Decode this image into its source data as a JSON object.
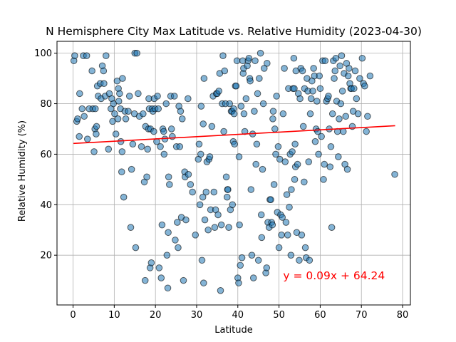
{
  "chart_data": {
    "type": "scatter",
    "title": "N Hemisphere City Max Latitude vs. Relative Humidity (2023-04-30)",
    "xlabel": "Latitude",
    "ylabel": "Relative Humidity (%)",
    "xlim": [
      -3.9,
      81.9
    ],
    "ylim": [
      0.3,
      104.7
    ],
    "xticks": [
      0,
      10,
      20,
      30,
      40,
      50,
      60,
      70,
      80
    ],
    "yticks": [
      20,
      40,
      60,
      80,
      100
    ],
    "grid": true,
    "legend": "none",
    "point_color": "#1f77b4",
    "point_alpha": 0.55,
    "line_color": "#ff0000",
    "regression": {
      "slope": 0.09,
      "intercept": 64.24,
      "x_range": [
        0.1,
        78.2
      ]
    },
    "annotation": {
      "text": "y = 0.09x + 64.24",
      "x": 51,
      "y": 10.5,
      "color": "#ff0000"
    },
    "points": [
      [
        0.2,
        97
      ],
      [
        0.4,
        99
      ],
      [
        0.9,
        73
      ],
      [
        1.1,
        74
      ],
      [
        1.5,
        67
      ],
      [
        1.6,
        84
      ],
      [
        2.2,
        78
      ],
      [
        2.5,
        99
      ],
      [
        2.7,
        75
      ],
      [
        3.3,
        99
      ],
      [
        3.5,
        66
      ],
      [
        3.9,
        78
      ],
      [
        4.6,
        93
      ],
      [
        4.8,
        78
      ],
      [
        5.1,
        61
      ],
      [
        5.3,
        70
      ],
      [
        5.4,
        78
      ],
      [
        5.6,
        68
      ],
      [
        5.7,
        71
      ],
      [
        5.9,
        87
      ],
      [
        6.1,
        83
      ],
      [
        6.6,
        88
      ],
      [
        6.8,
        82
      ],
      [
        7.1,
        95
      ],
      [
        7.4,
        93
      ],
      [
        7.5,
        88
      ],
      [
        7.8,
        83
      ],
      [
        8.0,
        99
      ],
      [
        8.6,
        62
      ],
      [
        8.8,
        84
      ],
      [
        9.2,
        78
      ],
      [
        9.4,
        82
      ],
      [
        9.6,
        73
      ],
      [
        9.8,
        80
      ],
      [
        10.1,
        76
      ],
      [
        10.4,
        68
      ],
      [
        10.7,
        89
      ],
      [
        10.9,
        74
      ],
      [
        11.0,
        86
      ],
      [
        11.1,
        81
      ],
      [
        11.3,
        84
      ],
      [
        11.5,
        78
      ],
      [
        11.6,
        65
      ],
      [
        11.8,
        53
      ],
      [
        11.9,
        61
      ],
      [
        12.0,
        90
      ],
      [
        12.3,
        43
      ],
      [
        12.6,
        77
      ],
      [
        12.8,
        74
      ],
      [
        13.4,
        77
      ],
      [
        13.7,
        83
      ],
      [
        14.0,
        31
      ],
      [
        14.2,
        54
      ],
      [
        14.5,
        64
      ],
      [
        14.9,
        76
      ],
      [
        15.0,
        100
      ],
      [
        15.2,
        23
      ],
      [
        15.5,
        100
      ],
      [
        15.8,
        84
      ],
      [
        16.1,
        75
      ],
      [
        16.6,
        63
      ],
      [
        17.0,
        76
      ],
      [
        17.3,
        49
      ],
      [
        17.5,
        10
      ],
      [
        17.6,
        71
      ],
      [
        17.9,
        51
      ],
      [
        18.1,
        62
      ],
      [
        18.3,
        70
      ],
      [
        18.4,
        82
      ],
      [
        18.5,
        78
      ],
      [
        18.7,
        15
      ],
      [
        18.8,
        70
      ],
      [
        19.0,
        17
      ],
      [
        19.2,
        78
      ],
      [
        19.4,
        77
      ],
      [
        19.6,
        69
      ],
      [
        19.7,
        82
      ],
      [
        19.9,
        78
      ],
      [
        20.3,
        65
      ],
      [
        20.5,
        83
      ],
      [
        20.7,
        78
      ],
      [
        20.9,
        15
      ],
      [
        21.2,
        63
      ],
      [
        21.4,
        11
      ],
      [
        21.6,
        32
      ],
      [
        21.8,
        70
      ],
      [
        22.0,
        69
      ],
      [
        22.1,
        60
      ],
      [
        22.3,
        66
      ],
      [
        22.6,
        80
      ],
      [
        22.8,
        20
      ],
      [
        23.0,
        7
      ],
      [
        23.1,
        29
      ],
      [
        23.2,
        51
      ],
      [
        23.4,
        48
      ],
      [
        23.7,
        83
      ],
      [
        23.9,
        70
      ],
      [
        24.1,
        67
      ],
      [
        24.6,
        83
      ],
      [
        24.8,
        26
      ],
      [
        25.1,
        63
      ],
      [
        25.3,
        33
      ],
      [
        25.5,
        23
      ],
      [
        25.7,
        79
      ],
      [
        25.9,
        63
      ],
      [
        26.1,
        77
      ],
      [
        26.3,
        35
      ],
      [
        26.5,
        74
      ],
      [
        26.8,
        10
      ],
      [
        27.1,
        53
      ],
      [
        27.2,
        51
      ],
      [
        27.4,
        34
      ],
      [
        27.9,
        82
      ],
      [
        28.0,
        52
      ],
      [
        28.5,
        48
      ],
      [
        29.0,
        45
      ],
      [
        29.7,
        28
      ],
      [
        30.4,
        58
      ],
      [
        30.6,
        64
      ],
      [
        30.8,
        40
      ],
      [
        31.0,
        60
      ],
      [
        31.1,
        79
      ],
      [
        31.3,
        18
      ],
      [
        31.5,
        43
      ],
      [
        31.6,
        72
      ],
      [
        31.7,
        9
      ],
      [
        31.8,
        90
      ],
      [
        32.0,
        34
      ],
      [
        32.3,
        45
      ],
      [
        32.5,
        57
      ],
      [
        32.8,
        30
      ],
      [
        33.0,
        58
      ],
      [
        33.2,
        59
      ],
      [
        33.4,
        38
      ],
      [
        33.7,
        71
      ],
      [
        34.0,
        83
      ],
      [
        34.2,
        45
      ],
      [
        34.4,
        31
      ],
      [
        34.6,
        38
      ],
      [
        34.8,
        84
      ],
      [
        35.0,
        84
      ],
      [
        35.2,
        36
      ],
      [
        35.4,
        85
      ],
      [
        35.6,
        92
      ],
      [
        35.8,
        6
      ],
      [
        36.0,
        32
      ],
      [
        36.2,
        80
      ],
      [
        36.4,
        99
      ],
      [
        36.6,
        69
      ],
      [
        36.8,
        93
      ],
      [
        37.0,
        80
      ],
      [
        37.2,
        51
      ],
      [
        37.4,
        43
      ],
      [
        37.5,
        46
      ],
      [
        37.6,
        46
      ],
      [
        37.8,
        31
      ],
      [
        38.0,
        80
      ],
      [
        38.2,
        38
      ],
      [
        38.4,
        77
      ],
      [
        38.6,
        77
      ],
      [
        38.7,
        40
      ],
      [
        38.9,
        65
      ],
      [
        39.0,
        78
      ],
      [
        39.1,
        76
      ],
      [
        39.2,
        64
      ],
      [
        39.4,
        87
      ],
      [
        39.6,
        87
      ],
      [
        39.8,
        97
      ],
      [
        40.0,
        11
      ],
      [
        40.2,
        9
      ],
      [
        40.3,
        59
      ],
      [
        40.4,
        32
      ],
      [
        40.6,
        16
      ],
      [
        40.8,
        79
      ],
      [
        41.0,
        19
      ],
      [
        41.2,
        97
      ],
      [
        41.3,
        92
      ],
      [
        41.4,
        94
      ],
      [
        41.5,
        76
      ],
      [
        41.7,
        69
      ],
      [
        42.0,
        82
      ],
      [
        42.3,
        95
      ],
      [
        42.5,
        97
      ],
      [
        42.7,
        98
      ],
      [
        42.9,
        90
      ],
      [
        43.0,
        89
      ],
      [
        43.2,
        46
      ],
      [
        43.4,
        20
      ],
      [
        43.6,
        68
      ],
      [
        43.8,
        11
      ],
      [
        44.0,
        77
      ],
      [
        44.2,
        97
      ],
      [
        44.4,
        56
      ],
      [
        44.6,
        64
      ],
      [
        44.8,
        84
      ],
      [
        45.0,
        18
      ],
      [
        45.2,
        90
      ],
      [
        45.5,
        100
      ],
      [
        45.7,
        36
      ],
      [
        45.8,
        27
      ],
      [
        46.0,
        54
      ],
      [
        46.2,
        80
      ],
      [
        46.4,
        94
      ],
      [
        46.8,
        13
      ],
      [
        47.0,
        15
      ],
      [
        47.1,
        96
      ],
      [
        47.3,
        33
      ],
      [
        47.6,
        31
      ],
      [
        47.8,
        42
      ],
      [
        48.0,
        42
      ],
      [
        48.2,
        33
      ],
      [
        48.4,
        32
      ],
      [
        48.5,
        74
      ],
      [
        48.6,
        77
      ],
      [
        48.8,
        48
      ],
      [
        49.0,
        70
      ],
      [
        49.2,
        60
      ],
      [
        49.4,
        83
      ],
      [
        49.6,
        37
      ],
      [
        49.8,
        63
      ],
      [
        50.0,
        23
      ],
      [
        50.2,
        58
      ],
      [
        50.4,
        36
      ],
      [
        50.6,
        28
      ],
      [
        50.8,
        35
      ],
      [
        51.0,
        76
      ],
      [
        51.3,
        94
      ],
      [
        51.5,
        57
      ],
      [
        51.7,
        33
      ],
      [
        51.9,
        44
      ],
      [
        52.1,
        28
      ],
      [
        52.3,
        86
      ],
      [
        52.5,
        39
      ],
      [
        52.7,
        60
      ],
      [
        52.9,
        20
      ],
      [
        53.0,
        46
      ],
      [
        53.2,
        61
      ],
      [
        53.4,
        86
      ],
      [
        53.6,
        98
      ],
      [
        53.7,
        86
      ],
      [
        53.8,
        50
      ],
      [
        53.9,
        64
      ],
      [
        54.0,
        55
      ],
      [
        54.1,
        93
      ],
      [
        54.3,
        29
      ],
      [
        54.5,
        56
      ],
      [
        54.7,
        84
      ],
      [
        54.9,
        18
      ],
      [
        55.1,
        82
      ],
      [
        55.3,
        94
      ],
      [
        55.5,
        28
      ],
      [
        55.7,
        93
      ],
      [
        55.9,
        71
      ],
      [
        56.1,
        49
      ],
      [
        56.2,
        86
      ],
      [
        56.4,
        23
      ],
      [
        56.6,
        19
      ],
      [
        56.8,
        90
      ],
      [
        57.0,
        85
      ],
      [
        57.2,
        57
      ],
      [
        57.4,
        18
      ],
      [
        57.6,
        76
      ],
      [
        57.8,
        82
      ],
      [
        58.0,
        89
      ],
      [
        58.2,
        85
      ],
      [
        58.4,
        94
      ],
      [
        58.6,
        91
      ],
      [
        58.8,
        65
      ],
      [
        59.0,
        70
      ],
      [
        59.2,
        81
      ],
      [
        59.4,
        69
      ],
      [
        59.6,
        60
      ],
      [
        59.8,
        91
      ],
      [
        60.0,
        86
      ],
      [
        60.3,
        67
      ],
      [
        60.6,
        97
      ],
      [
        60.8,
        50
      ],
      [
        61.0,
        56
      ],
      [
        61.2,
        97
      ],
      [
        61.5,
        81
      ],
      [
        61.8,
        82
      ],
      [
        62.0,
        83
      ],
      [
        62.2,
        70
      ],
      [
        62.4,
        55
      ],
      [
        62.6,
        63
      ],
      [
        62.8,
        31
      ],
      [
        63.0,
        76
      ],
      [
        63.2,
        97
      ],
      [
        63.4,
        90
      ],
      [
        63.6,
        93
      ],
      [
        63.8,
        98
      ],
      [
        64.0,
        81
      ],
      [
        64.2,
        69
      ],
      [
        64.4,
        59
      ],
      [
        64.6,
        74
      ],
      [
        64.8,
        95
      ],
      [
        65.0,
        80
      ],
      [
        65.2,
        99
      ],
      [
        65.4,
        85
      ],
      [
        65.6,
        69
      ],
      [
        65.8,
        92
      ],
      [
        66.0,
        56
      ],
      [
        66.2,
        75
      ],
      [
        66.4,
        96
      ],
      [
        66.6,
        54
      ],
      [
        66.8,
        91
      ],
      [
        67.0,
        94
      ],
      [
        67.2,
        88
      ],
      [
        67.4,
        86
      ],
      [
        67.6,
        86
      ],
      [
        67.8,
        71
      ],
      [
        68.0,
        77
      ],
      [
        68.2,
        86
      ],
      [
        68.5,
        93
      ],
      [
        68.8,
        82
      ],
      [
        69.2,
        76
      ],
      [
        69.6,
        90
      ],
      [
        70.2,
        98
      ],
      [
        70.5,
        88
      ],
      [
        70.8,
        87
      ],
      [
        71.2,
        69
      ],
      [
        71.5,
        75
      ],
      [
        72.1,
        91
      ],
      [
        78.1,
        52
      ]
    ]
  }
}
